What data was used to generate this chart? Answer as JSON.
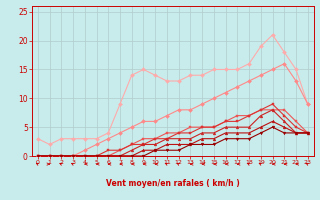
{
  "bg_color": "#c8ecec",
  "grid_color": "#b0cccc",
  "xlabel": "Vent moyen/en rafales ( km/h )",
  "xlabel_color": "#cc0000",
  "tick_color": "#cc0000",
  "xlim": [
    -0.5,
    23.5
  ],
  "ylim": [
    0,
    26
  ],
  "xticks": [
    0,
    1,
    2,
    3,
    4,
    5,
    6,
    7,
    8,
    9,
    10,
    11,
    12,
    13,
    14,
    15,
    16,
    17,
    18,
    19,
    20,
    21,
    22,
    23
  ],
  "yticks": [
    0,
    5,
    10,
    15,
    20,
    25
  ],
  "lines": [
    {
      "x": [
        0,
        1,
        2,
        3,
        4,
        5,
        6,
        7,
        8,
        9,
        10,
        11,
        12,
        13,
        14,
        15,
        16,
        17,
        18,
        19,
        20,
        21,
        22,
        23
      ],
      "y": [
        3.0,
        2.0,
        3.0,
        3.0,
        3.0,
        3.0,
        4.0,
        9.0,
        14.0,
        15.0,
        14.0,
        13.0,
        13.0,
        14.0,
        14.0,
        15.0,
        15.0,
        15.0,
        16.0,
        19.0,
        21.0,
        18.0,
        15.0,
        9.0
      ],
      "color": "#ffaaaa",
      "marker": "D",
      "lw": 0.8,
      "ms": 2.0
    },
    {
      "x": [
        0,
        1,
        2,
        3,
        4,
        5,
        6,
        7,
        8,
        9,
        10,
        11,
        12,
        13,
        14,
        15,
        16,
        17,
        18,
        19,
        20,
        21,
        22,
        23
      ],
      "y": [
        0,
        0,
        0,
        0,
        1,
        2,
        3,
        4,
        5,
        6,
        6,
        7,
        8,
        8,
        9,
        10,
        11,
        12,
        13,
        14,
        15,
        16,
        13,
        9
      ],
      "color": "#ff8888",
      "marker": "D",
      "lw": 0.8,
      "ms": 2.0
    },
    {
      "x": [
        0,
        1,
        2,
        3,
        4,
        5,
        6,
        7,
        8,
        9,
        10,
        11,
        12,
        13,
        14,
        15,
        16,
        17,
        18,
        19,
        20,
        21,
        22,
        23
      ],
      "y": [
        0,
        0,
        0,
        0,
        0,
        0,
        0,
        1,
        2,
        3,
        3,
        4,
        4,
        5,
        5,
        5,
        6,
        7,
        7,
        8,
        8,
        8,
        6,
        4
      ],
      "color": "#ee5555",
      "marker": "s",
      "lw": 0.8,
      "ms": 2.0
    },
    {
      "x": [
        0,
        1,
        2,
        3,
        4,
        5,
        6,
        7,
        8,
        9,
        10,
        11,
        12,
        13,
        14,
        15,
        16,
        17,
        18,
        19,
        20,
        21,
        22,
        23
      ],
      "y": [
        0,
        0,
        0,
        0,
        0,
        0,
        1,
        1,
        2,
        2,
        3,
        3,
        4,
        4,
        5,
        5,
        6,
        6,
        7,
        8,
        9,
        7,
        5,
        4
      ],
      "color": "#dd3333",
      "marker": "s",
      "lw": 0.8,
      "ms": 2.0
    },
    {
      "x": [
        0,
        1,
        2,
        3,
        4,
        5,
        6,
        7,
        8,
        9,
        10,
        11,
        12,
        13,
        14,
        15,
        16,
        17,
        18,
        19,
        20,
        21,
        22,
        23
      ],
      "y": [
        0,
        0,
        0,
        0,
        0,
        0,
        0,
        0,
        1,
        2,
        2,
        3,
        3,
        3,
        4,
        4,
        5,
        5,
        5,
        7,
        8,
        6,
        4,
        4
      ],
      "color": "#cc2222",
      "marker": "^",
      "lw": 0.8,
      "ms": 2.0
    },
    {
      "x": [
        0,
        1,
        2,
        3,
        4,
        5,
        6,
        7,
        8,
        9,
        10,
        11,
        12,
        13,
        14,
        15,
        16,
        17,
        18,
        19,
        20,
        21,
        22,
        23
      ],
      "y": [
        0,
        0,
        0,
        0,
        0,
        0,
        0,
        0,
        0,
        1,
        1,
        2,
        2,
        2,
        3,
        3,
        4,
        4,
        4,
        5,
        6,
        5,
        4,
        4
      ],
      "color": "#bb1111",
      "marker": "^",
      "lw": 0.8,
      "ms": 2.0
    },
    {
      "x": [
        0,
        1,
        2,
        3,
        4,
        5,
        6,
        7,
        8,
        9,
        10,
        11,
        12,
        13,
        14,
        15,
        16,
        17,
        18,
        19,
        20,
        21,
        22,
        23
      ],
      "y": [
        0,
        0,
        0,
        0,
        0,
        0,
        0,
        0,
        0,
        0,
        1,
        1,
        1,
        2,
        2,
        2,
        3,
        3,
        3,
        4,
        5,
        4,
        4,
        4
      ],
      "color": "#990000",
      "marker": "v",
      "lw": 0.8,
      "ms": 2.0
    }
  ],
  "arrow_angles": [
    225,
    90,
    225,
    225,
    270,
    270,
    270,
    270,
    270,
    270,
    270,
    225,
    225,
    270,
    270,
    270,
    270,
    270,
    225,
    225,
    270,
    270,
    270,
    225
  ]
}
